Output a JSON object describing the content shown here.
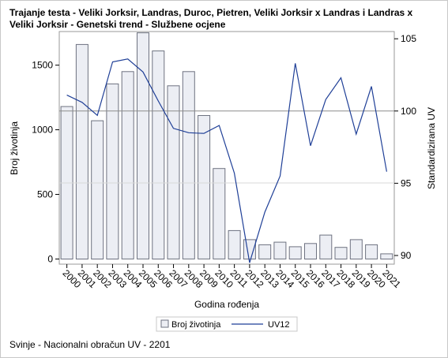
{
  "title": "Trajanje testa - Veliki Jorksir, Landras, Duroc, Pietren, Veliki Jorksir x Landras i Landras x Veliki Jorksir - Genetski trend - Službene ocjene",
  "footer": "Svinje - Nacionalni obračun UV - 2201",
  "colors": {
    "bar_fill": "#eceef4",
    "bar_stroke": "#6e7280",
    "line": "#1f3f97",
    "ref_line": "#8c8c8c"
  },
  "chart_data": {
    "type": "bar",
    "xlabel": "Godina rođenja",
    "ylabel": "Broj životinja",
    "y2label": "Standardizirana UV",
    "categories": [
      "2000",
      "2001",
      "2002",
      "2003",
      "2004",
      "2005",
      "2006",
      "2007",
      "2008",
      "2009",
      "2010",
      "2011",
      "2012",
      "2013",
      "2014",
      "2015",
      "2016",
      "2017",
      "2018",
      "2019",
      "2020",
      "2021"
    ],
    "ylim": [
      -40,
      1760
    ],
    "yticks": [
      0,
      500,
      1000,
      1500
    ],
    "y2lim": [
      89.4,
      105.5
    ],
    "y2ticks": [
      90,
      95,
      100,
      105
    ],
    "series": [
      {
        "name": "Broj životinja",
        "type": "bar",
        "axis": "left",
        "values": [
          1180,
          1660,
          1070,
          1355,
          1450,
          1750,
          1610,
          1340,
          1450,
          1110,
          700,
          220,
          150,
          110,
          130,
          95,
          120,
          185,
          90,
          150,
          110,
          40
        ]
      },
      {
        "name": "UV12",
        "type": "line",
        "axis": "right",
        "values": [
          101.1,
          100.6,
          99.7,
          103.4,
          103.6,
          102.7,
          100.7,
          98.8,
          98.5,
          98.45,
          99.0,
          95.7,
          89.5,
          93.0,
          95.5,
          103.3,
          97.6,
          100.8,
          102.3,
          98.4,
          101.7,
          95.8
        ]
      }
    ],
    "reference_line": {
      "axis": "right",
      "value": 100
    },
    "grid": false,
    "legend_position": "bottom"
  }
}
